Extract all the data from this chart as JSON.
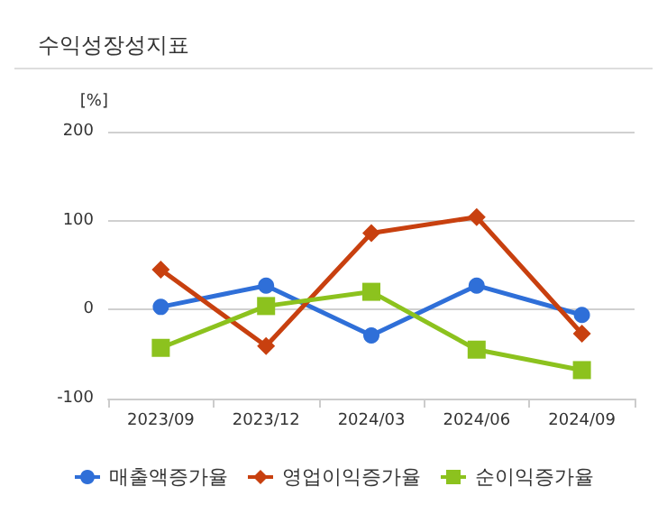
{
  "chart_data": {
    "type": "line",
    "title": "수익성장성지표",
    "ylabel": "[%]",
    "categories": [
      "2023/09",
      "2023/12",
      "2024/03",
      "2024/06",
      "2024/09"
    ],
    "series": [
      {
        "name": "매출액증가율",
        "color": "#2f6fd8",
        "marker": "circle",
        "values": [
          3,
          27,
          -29,
          27,
          -6
        ]
      },
      {
        "name": "영업이익증가율",
        "color": "#c8400f",
        "marker": "diamond",
        "values": [
          45,
          -41,
          86,
          104,
          -27
        ]
      },
      {
        "name": "순이익증가율",
        "color": "#8cc21e",
        "marker": "square",
        "values": [
          -43,
          4,
          20,
          -45,
          -68
        ]
      }
    ],
    "ylim": [
      -100,
      200
    ],
    "yticks": [
      -100,
      0,
      100,
      200
    ],
    "grid": "y",
    "legend": "bottom"
  }
}
